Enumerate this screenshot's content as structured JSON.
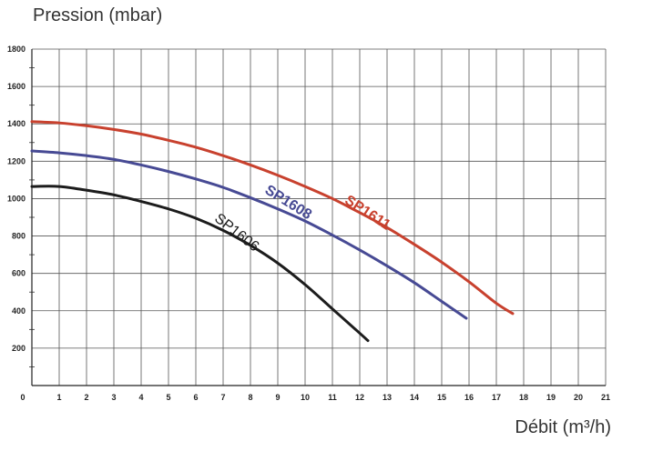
{
  "chart_data": {
    "type": "line",
    "title": "",
    "ylabel": "Pression (mbar)",
    "xlabel": "Débit (m³/h)",
    "xlim": [
      0,
      21
    ],
    "ylim": [
      0,
      1800
    ],
    "x_ticks": [
      0,
      1,
      2,
      3,
      4,
      5,
      6,
      7,
      8,
      9,
      10,
      11,
      12,
      13,
      14,
      15,
      16,
      17,
      18,
      19,
      20,
      21
    ],
    "y_ticks": [
      200,
      400,
      600,
      800,
      1000,
      1200,
      1400,
      1600,
      1800
    ],
    "x_zero_label": "0",
    "grid": true,
    "series": [
      {
        "name": "SP1606",
        "color": "#1c1c1c",
        "bold": false,
        "x": [
          0,
          1,
          2,
          3,
          4,
          5,
          6,
          7,
          8,
          9,
          10,
          11,
          12,
          12.3
        ],
        "y": [
          1065,
          1065,
          1045,
          1020,
          985,
          945,
          895,
          830,
          750,
          655,
          540,
          410,
          280,
          240
        ]
      },
      {
        "name": "SP1608",
        "color": "#474a94",
        "bold": true,
        "x": [
          0,
          1,
          2,
          3,
          4,
          5,
          6,
          7,
          8,
          9,
          10,
          11,
          12,
          13,
          14,
          15,
          15.9
        ],
        "y": [
          1255,
          1245,
          1230,
          1210,
          1180,
          1145,
          1105,
          1060,
          1005,
          945,
          880,
          805,
          725,
          640,
          550,
          450,
          360
        ]
      },
      {
        "name": "SP1611",
        "color": "#c8412e",
        "bold": true,
        "x": [
          0,
          1,
          2,
          3,
          4,
          5,
          6,
          7,
          8,
          9,
          10,
          11,
          12,
          13,
          14,
          15,
          16,
          17,
          17.6
        ],
        "y": [
          1412,
          1405,
          1390,
          1370,
          1345,
          1312,
          1275,
          1230,
          1180,
          1125,
          1065,
          1000,
          925,
          845,
          755,
          660,
          555,
          440,
          385
        ]
      }
    ],
    "labels": [
      {
        "series": "SP1611",
        "text": "SP1611",
        "x": 12.2,
        "y": 905,
        "angle": 33
      },
      {
        "series": "SP1608",
        "text": "SP1608",
        "x": 9.3,
        "y": 960,
        "angle": 32
      },
      {
        "series": "SP1606",
        "text": "SP1606",
        "x": 7.4,
        "y": 800,
        "angle": 38
      }
    ]
  }
}
